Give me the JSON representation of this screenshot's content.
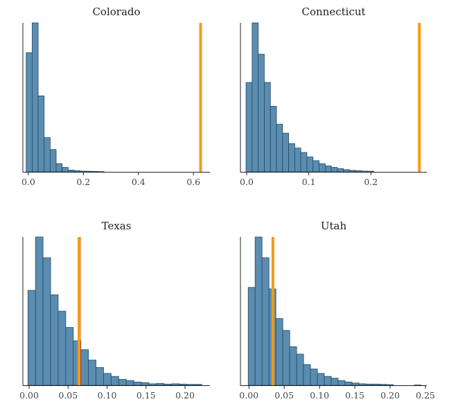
{
  "chart_data": [
    {
      "type": "histogram",
      "title": "Colorado",
      "xlabel": "",
      "ylabel": "",
      "xlim": [
        -0.02,
        0.66
      ],
      "xticks": [
        0.0,
        0.2,
        0.4,
        0.6
      ],
      "xtick_labels": [
        "0.0",
        "0.2",
        "0.4",
        "0.6"
      ],
      "bin_start": -0.008,
      "bin_width": 0.0218,
      "counts": [
        800,
        1000,
        510,
        230,
        150,
        55,
        30,
        12,
        8,
        5,
        4,
        3,
        2,
        0,
        0,
        0,
        0,
        0,
        0,
        0,
        0,
        0,
        0,
        0,
        0,
        0,
        0,
        0,
        0
      ],
      "reference_line": {
        "x": 0.626,
        "color": "#f39c12"
      },
      "bar_color": "#5b8db0",
      "y_axis_visible": true,
      "y_ticks_visible": false,
      "grid": false
    },
    {
      "type": "histogram",
      "title": "Connecticut",
      "xlabel": "",
      "ylabel": "",
      "xlim": [
        -0.01,
        0.29
      ],
      "xticks": [
        0.0,
        0.1,
        0.2
      ],
      "xtick_labels": [
        "0.0",
        "0.1",
        "0.2"
      ],
      "bin_start": -0.001,
      "bin_width": 0.0098,
      "counts": [
        600,
        1000,
        790,
        600,
        440,
        320,
        260,
        190,
        160,
        130,
        100,
        75,
        55,
        40,
        30,
        22,
        15,
        10,
        8,
        5,
        4,
        0,
        0,
        0,
        0,
        0,
        0,
        0
      ],
      "reference_line": {
        "x": 0.278,
        "color": "#f39c12"
      },
      "bar_color": "#5b8db0",
      "y_axis_visible": true,
      "y_ticks_visible": false,
      "grid": false
    },
    {
      "type": "histogram",
      "title": "Texas",
      "xlabel": "",
      "ylabel": "",
      "xlim": [
        -0.008,
        0.232
      ],
      "xticks": [
        0.0,
        0.05,
        0.1,
        0.15,
        0.2
      ],
      "xtick_labels": [
        "0.00",
        "0.05",
        "0.10",
        "0.15",
        "0.20"
      ],
      "bin_start": -0.0015,
      "bin_width": 0.0097,
      "counts": [
        640,
        1000,
        860,
        610,
        500,
        390,
        300,
        240,
        170,
        120,
        80,
        60,
        40,
        32,
        22,
        18,
        10,
        12,
        8,
        10,
        8,
        6,
        6,
        0
      ],
      "reference_line": {
        "x": 0.064,
        "color": "#f39c12",
        "edge_color": "#e74c3c"
      },
      "bar_color": "#5b8db0",
      "y_axis_visible": true,
      "y_ticks_visible": false,
      "grid": false
    },
    {
      "type": "histogram",
      "title": "Utah",
      "xlabel": "",
      "ylabel": "",
      "xlim": [
        -0.012,
        0.252
      ],
      "xticks": [
        0.0,
        0.05,
        0.1,
        0.15,
        0.2,
        0.25
      ],
      "xtick_labels": [
        "0.00",
        "0.05",
        "0.10",
        "0.15",
        "0.20",
        "0.25"
      ],
      "bin_start": -0.001,
      "bin_width": 0.0098,
      "counts": [
        660,
        1000,
        860,
        650,
        450,
        370,
        260,
        210,
        140,
        110,
        80,
        60,
        48,
        32,
        22,
        15,
        10,
        8,
        8,
        6,
        4,
        0,
        0,
        0,
        2
      ],
      "reference_line": {
        "x": 0.034,
        "color": "#f39c12"
      },
      "bar_color": "#5b8db0",
      "y_axis_visible": true,
      "y_ticks_visible": false,
      "grid": false
    }
  ]
}
